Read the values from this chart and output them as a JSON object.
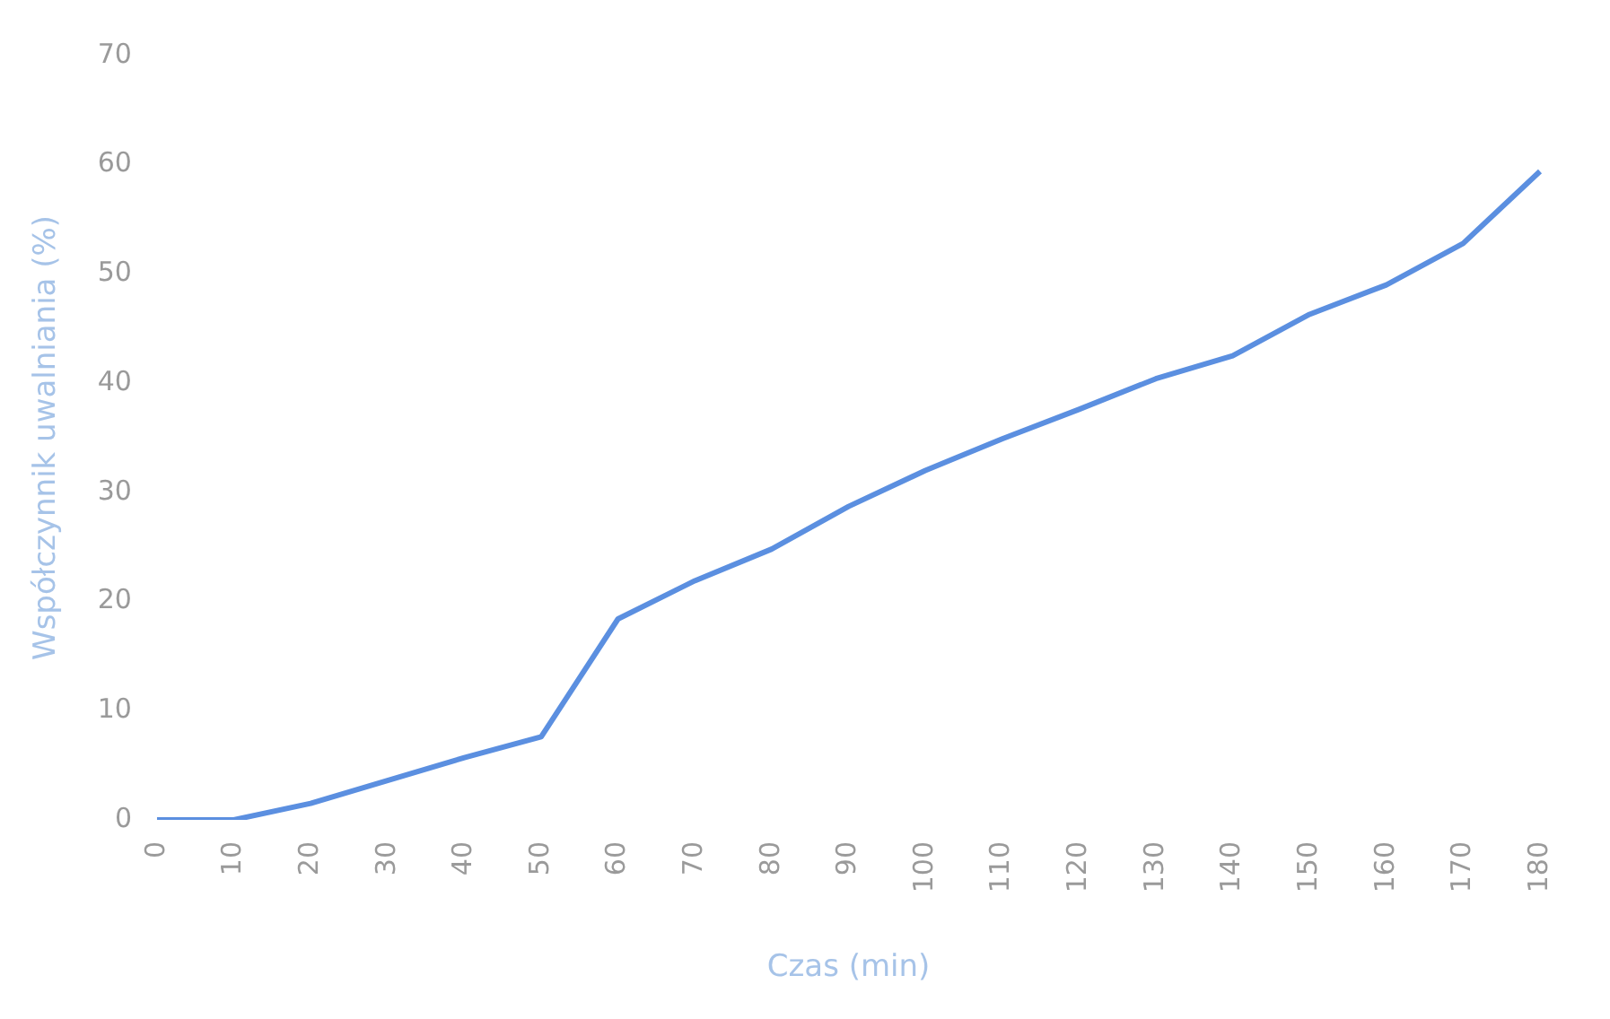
{
  "chart_data": {
    "type": "line",
    "xlabel": "Czas (min)",
    "ylabel": "Współczynnik uwalniania (%)",
    "categories": [
      "0",
      "10",
      "20",
      "30",
      "40",
      "50",
      "60",
      "70",
      "80",
      "90",
      "100",
      "110",
      "120",
      "130",
      "140",
      "150",
      "160",
      "170",
      "180"
    ],
    "series": [
      {
        "color": "#5b8fe0",
        "values": [
          0,
          0,
          1.5,
          3.6,
          5.7,
          7.6,
          18.4,
          21.9,
          24.8,
          28.7,
          32,
          34.9,
          37.6,
          40.4,
          42.5,
          46.3,
          49,
          52.8,
          59.4
        ]
      }
    ],
    "ylim": [
      0,
      70
    ],
    "yticks": [
      0,
      10,
      20,
      30,
      40,
      50,
      60,
      70
    ],
    "grid": false,
    "legend": false,
    "marker": "none",
    "line_style": "solid"
  }
}
